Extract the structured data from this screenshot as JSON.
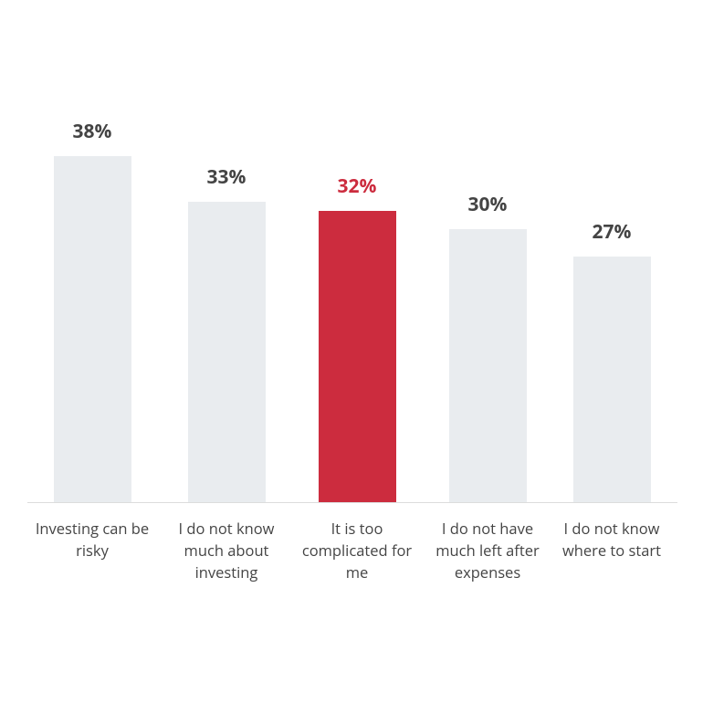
{
  "chart_data": {
    "type": "bar",
    "categories": [
      "Investing can be risky",
      "I do not know much about investing",
      "It is too complicated for me",
      "I do not have much left after expenses",
      "I do not know where to start"
    ],
    "values": [
      38,
      33,
      32,
      30,
      27
    ],
    "value_labels": [
      "38%",
      "33%",
      "32%",
      "30%",
      "27%"
    ],
    "colors": [
      "#e9ecef",
      "#e9ecef",
      "#cc2c3e",
      "#e9ecef",
      "#e9ecef"
    ],
    "label_colors": [
      "#444444",
      "#444444",
      "#cc2c3e",
      "#444444",
      "#444444"
    ]
  }
}
